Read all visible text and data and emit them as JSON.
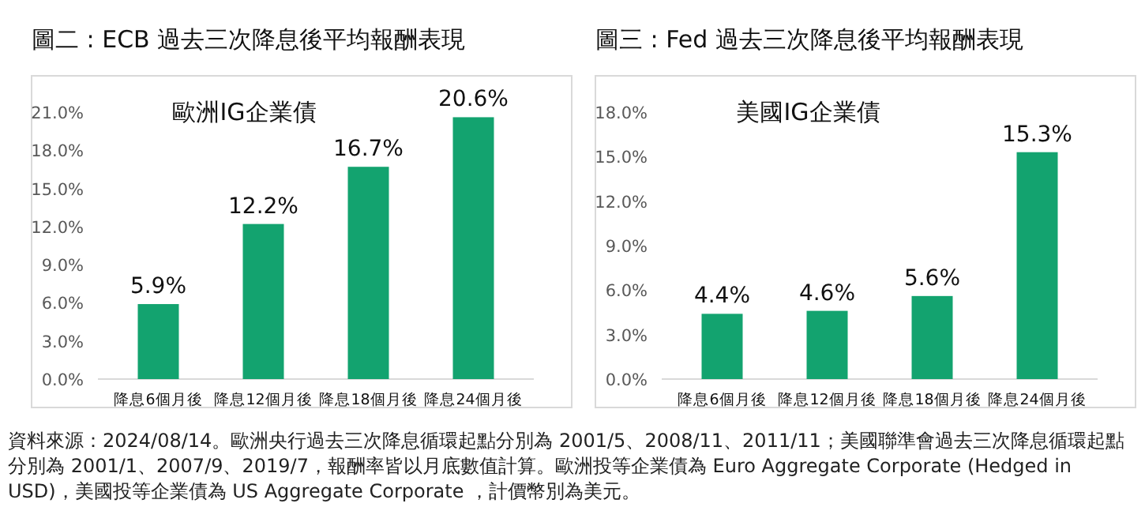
{
  "chart_data": [
    {
      "type": "bar",
      "title": "圖二 : ECB 過去三次降息後平均報酬表現",
      "subtitle": "歐洲IG企業債",
      "categories": [
        "降息6個月後",
        "降息12個月後",
        "降息18個月後",
        "降息24個月後"
      ],
      "values": [
        5.9,
        12.2,
        16.7,
        20.6
      ],
      "value_labels": [
        "5.9%",
        "12.2%",
        "16.7%",
        "20.6%"
      ],
      "color": "#13a36f",
      "ylim": [
        0,
        21
      ],
      "yticks": [
        {
          "value": 0,
          "label": "0.0%"
        },
        {
          "value": 3,
          "label": "3.0%"
        },
        {
          "value": 6,
          "label": "6.0%"
        },
        {
          "value": 9,
          "label": "9.0%"
        },
        {
          "value": 12,
          "label": "12.0%"
        },
        {
          "value": 15,
          "label": "15.0%"
        },
        {
          "value": 18,
          "label": "18.0%"
        },
        {
          "value": 21,
          "label": "21.0%"
        }
      ],
      "annotations": [
        "資料來源：2024/08/14。歐洲央行過去三次降息循環起點分別為 2001/5、2008/11、2011/11；美國聯準會過去三次降息循環起點分別為 2001/1、2007/9、2019/7，報酬率皆以月底數值計算。歐洲投等企業債為 Euro Aggregate Corporate (Hedged in USD)，美國投等企業債為 US Aggregate Corporate ，計價幣別為美元。"
      ]
    },
    {
      "type": "bar",
      "title": "圖三 : Fed 過去三次降息後平均報酬表現",
      "subtitle": "美國IG企業債",
      "categories": [
        "降息6個月後",
        "降息12個月後",
        "降息18個月後",
        "降息24個月後"
      ],
      "values": [
        4.4,
        4.6,
        5.6,
        15.3
      ],
      "value_labels": [
        "4.4%",
        "4.6%",
        "5.6%",
        "15.3%"
      ],
      "color": "#13a36f",
      "ylim": [
        0,
        18
      ],
      "yticks": [
        {
          "value": 0,
          "label": "0.0%"
        },
        {
          "value": 3,
          "label": "3.0%"
        },
        {
          "value": 6,
          "label": "6.0%"
        },
        {
          "value": 9,
          "label": "9.0%"
        },
        {
          "value": 12,
          "label": "12.0%"
        },
        {
          "value": 15,
          "label": "15.0%"
        },
        {
          "value": 18,
          "label": "18.0%"
        }
      ]
    }
  ]
}
